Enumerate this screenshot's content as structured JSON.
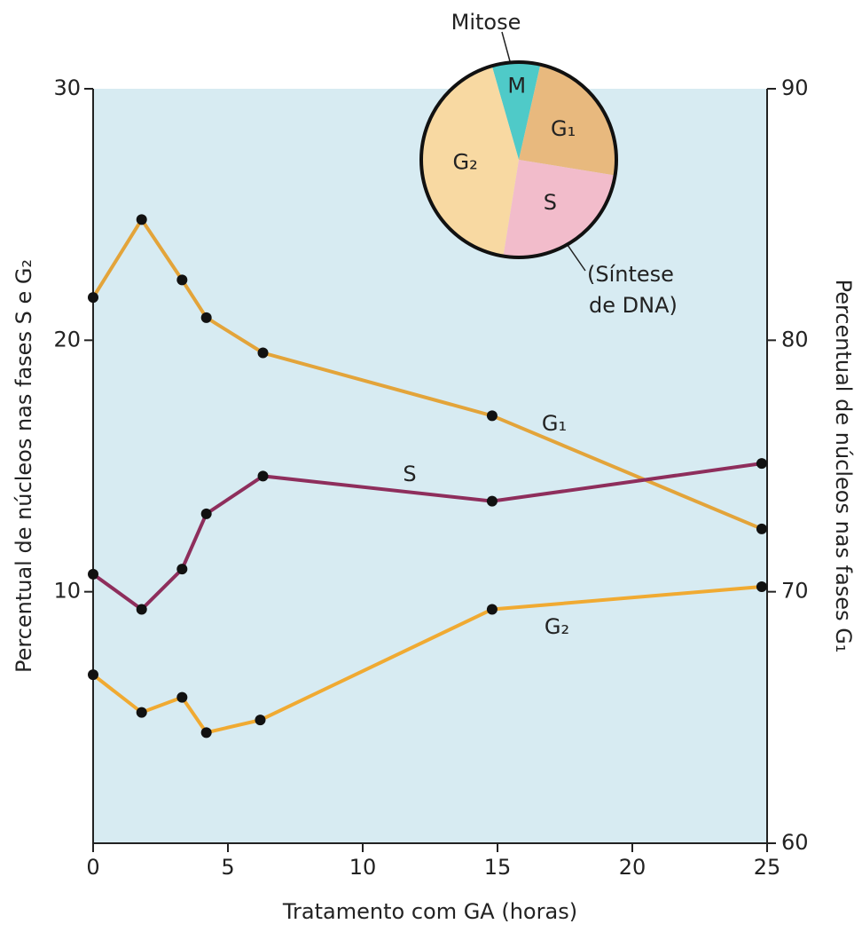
{
  "chart_data": [
    {
      "type": "line",
      "x_label": "Tratamento com GA (horas)",
      "y_label": "Percentual de núcleos nas fases S e G₂",
      "y2_label": "Percentual de núcleos nas fases G₁",
      "xlim": [
        0,
        25
      ],
      "xticks": [
        0,
        5,
        10,
        15,
        20,
        25
      ],
      "ylim": [
        0,
        30
      ],
      "yticks": [
        10,
        20,
        30
      ],
      "y2lim": [
        60,
        90
      ],
      "y2ticks": [
        60,
        70,
        80,
        90
      ],
      "series": [
        {
          "name": "G₁",
          "color": "#e3a43a",
          "axis": "y2",
          "x": [
            0,
            1.8,
            3.3,
            4.2,
            6.3,
            14.8,
            24.8
          ],
          "values": [
            81.7,
            84.8,
            82.4,
            80.9,
            79.5,
            77.0,
            72.5
          ]
        },
        {
          "name": "S",
          "color": "#8e2e5c",
          "x": [
            0,
            1.8,
            3.3,
            4.2,
            6.3,
            14.8,
            24.8
          ],
          "values": [
            10.7,
            9.3,
            10.9,
            13.1,
            14.6,
            13.6,
            15.1
          ]
        },
        {
          "name": "G₂",
          "color": "#f0aa32",
          "x": [
            0,
            1.8,
            3.3,
            4.2,
            6.2,
            14.8,
            24.8
          ],
          "values": [
            6.7,
            5.2,
            5.8,
            4.4,
            4.9,
            9.3,
            10.2
          ]
        }
      ]
    },
    {
      "type": "pie",
      "title": "Mitose",
      "categories": [
        "M",
        "G₁",
        "S",
        "G₂"
      ],
      "values": [
        8,
        24,
        25,
        43
      ],
      "colors": [
        "#4fcac8",
        "#e8b97e",
        "#f2bccb",
        "#f8d9a2"
      ],
      "annotation": [
        "(Síntese",
        "de DNA)"
      ]
    }
  ]
}
